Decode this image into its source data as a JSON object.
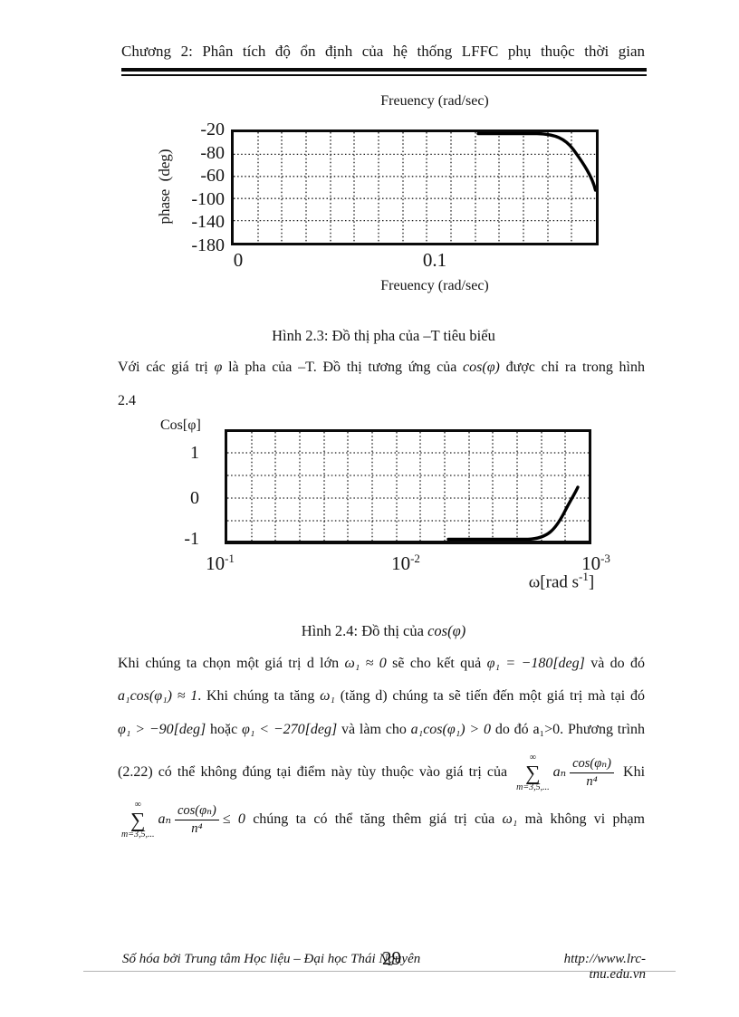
{
  "header": {
    "title": "Chương 2: Phân tích độ ổn định của hệ thống LFFC phụ thuộc thời gian"
  },
  "chart_data": [
    {
      "name": "fig1_phase_plot",
      "type": "line",
      "title_top": "Freuency (rad/sec)",
      "xlabel_bottom": "Freuency (rad/sec)",
      "ylabel": "phase  (deg)",
      "yticks": [
        "-20",
        "-80",
        "-60",
        "-100",
        "-140",
        "-180"
      ],
      "xticks": [
        "0",
        "0.1"
      ],
      "ylim": [
        -180,
        -20
      ],
      "grid": "dotted",
      "series": [
        {
          "name": "phase of -T",
          "points_x_radsec": [
            0,
            0.1,
            0.115,
            0.125,
            0.135,
            0.142,
            0.145
          ],
          "points_y_deg": [
            -20,
            -20,
            -22,
            -30,
            -48,
            -70,
            -93
          ]
        }
      ]
    },
    {
      "name": "fig2_cos_plot",
      "type": "line",
      "ylabel": "Cos[φ]",
      "yticks": [
        "1",
        "0",
        "-1"
      ],
      "xticks_base": [
        "10",
        "10",
        "10"
      ],
      "xticks_exp": [
        "-1",
        "-2",
        "-3"
      ],
      "xlabel_pre": "ω[rad s",
      "xlabel_sup": "-1",
      "xlabel_post": "]",
      "ylim": [
        -1,
        1.5
      ],
      "grid": "dotted",
      "series": [
        {
          "name": "cos(phi)",
          "points_x_radsec": [
            0.003,
            0.002,
            0.0016,
            0.0013,
            0.0011,
            0.001
          ],
          "points_y": [
            -1,
            -1,
            -0.97,
            -0.6,
            -0.1,
            0.3
          ]
        }
      ]
    }
  ],
  "caption_fig1": "Hình 2.3: Đồ thị pha của –T tiêu biểu",
  "para1": {
    "s1": "Với các giá trị ",
    "s2": "φ",
    "s3": " là pha của –T. Đồ thị tương ứng của ",
    "s4": "cos(φ)",
    "s5": " được chỉ ra trong hình",
    "line2": "2.4"
  },
  "caption_fig2": {
    "s1": "Hình 2.4: Đồ thị của ",
    "s2": "cos(φ)"
  },
  "para2": {
    "lineA": {
      "s1": "Khi chúng ta chọn một giá trị d lớn ",
      "s2": "ω₁ ≈ 0",
      "s3": " sẽ cho kết quả ",
      "s4": "φ₁ = −180[deg]",
      "s5": " và do đó"
    },
    "lineB": {
      "s1": "a₁cos(φ₁) ≈ 1",
      "s2": ". Khi chúng ta tăng ",
      "s3": "ω₁",
      "s4": " (tăng d) chúng ta sẽ tiến đến một giá trị mà tại đó"
    },
    "lineC": {
      "s1": "φ₁ > −90[deg]",
      "s2": " hoặc ",
      "s3": "φ₁ < −270[deg]",
      "s4": " và làm cho ",
      "s5": "a₁cos(φ₁) > 0",
      "s6": " do đó a₁>0. Phương trình"
    },
    "lineD": {
      "s1": "(2.22) có thể không đúng tại điểm này tùy thuộc vào giá trị của ",
      "sum_top": "∞",
      "sum_sym": "∑",
      "sum_bot": "m=3,5,...",
      "coeff": "aₙ",
      "frac_num": "cos(φₙ)",
      "frac_den": "n⁴",
      "s2": " Khi"
    },
    "lineE": {
      "sum_top": "∞",
      "sum_sym": "∑",
      "sum_bot": "m=3,5,...",
      "coeff": "aₙ",
      "frac_num": "cos(φₙ)",
      "frac_den": "n⁴",
      "cmp": "≤ 0",
      "s2": "  chúng ta có thể tăng thêm giá trị của ",
      "s3": "ω₁",
      "s4": " mà không vi phạm"
    }
  },
  "footer": {
    "left": "Số hóa bởi Trung tâm Học liệu – Đại học Thái Nguyên",
    "page": "29",
    "right": "http://www.lrc-tnu.edu.vn"
  }
}
